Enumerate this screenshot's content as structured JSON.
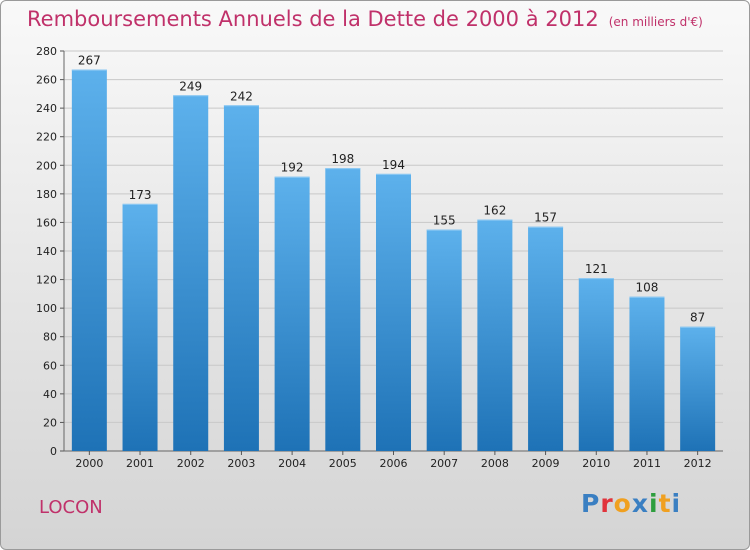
{
  "title": "Remboursements Annuels de la Dette de 2000 à 2012",
  "subtitle": "(en milliers d'€)",
  "town": "LOCON",
  "logo": "Proxiti",
  "colors": {
    "title": "#c0316a",
    "bar_top": "#5db1ec",
    "bar_bottom": "#1e72b6",
    "logo_letters": [
      "#3a7fc2",
      "#e1333b",
      "#f0a020",
      "#3a7fc2",
      "#2e9e3e",
      "#f0a020",
      "#3a7fc2"
    ]
  },
  "chart_data": {
    "type": "bar",
    "categories": [
      "2000",
      "2001",
      "2002",
      "2003",
      "2004",
      "2005",
      "2006",
      "2007",
      "2008",
      "2009",
      "2010",
      "2011",
      "2012"
    ],
    "values": [
      267,
      173,
      249,
      242,
      192,
      198,
      194,
      155,
      162,
      157,
      121,
      108,
      87
    ],
    "ylim": [
      0,
      280
    ],
    "yticks": [
      0,
      20,
      40,
      60,
      80,
      100,
      120,
      140,
      160,
      180,
      200,
      220,
      240,
      260,
      280
    ],
    "grid": true,
    "title": "Remboursements Annuels de la Dette de 2000 à 2012",
    "subtitle": "(en milliers d'€)",
    "xlabel": "",
    "ylabel": ""
  }
}
